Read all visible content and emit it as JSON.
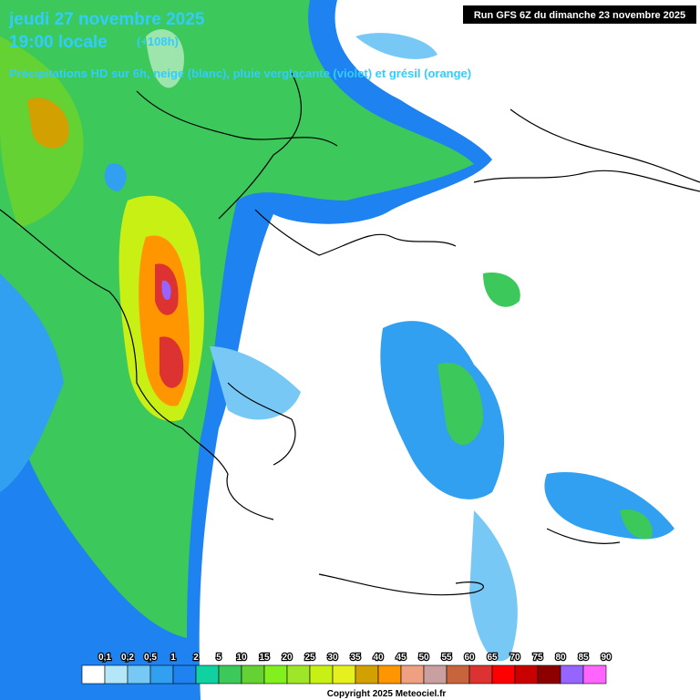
{
  "header": {
    "date": "jeudi 27 novembre 2025",
    "time": "19:00 locale",
    "lead": "(+108h)",
    "subtitle": "Précipitations HD sur 6h, neige (blanc), pluie verglaçante (violet) et grésil (orange)",
    "run": "Run GFS 6Z du dimanche 23 novembre 2025"
  },
  "legend": {
    "labels": [
      "0,1",
      "0,2",
      "0,5",
      "1",
      "2",
      "5",
      "10",
      "15",
      "20",
      "25",
      "30",
      "35",
      "40",
      "45",
      "50",
      "55",
      "60",
      "65",
      "70",
      "75",
      "80",
      "85",
      "90"
    ],
    "colors": [
      "#ffffff",
      "#b4e6fa",
      "#78c8f5",
      "#32a0f0",
      "#1e82f0",
      "#10d2a0",
      "#3cc85a",
      "#64d232",
      "#82f01e",
      "#a0e628",
      "#c8f014",
      "#e6f01e",
      "#d2a000",
      "#ff9600",
      "#f0a082",
      "#c8a0a0",
      "#c8643c",
      "#dc3232",
      "#ff0000",
      "#c80000",
      "#8c0000",
      "#9664ff",
      "#ff64ff"
    ]
  },
  "footer": {
    "copyright": "Copyright 2025 Meteociel.fr"
  }
}
